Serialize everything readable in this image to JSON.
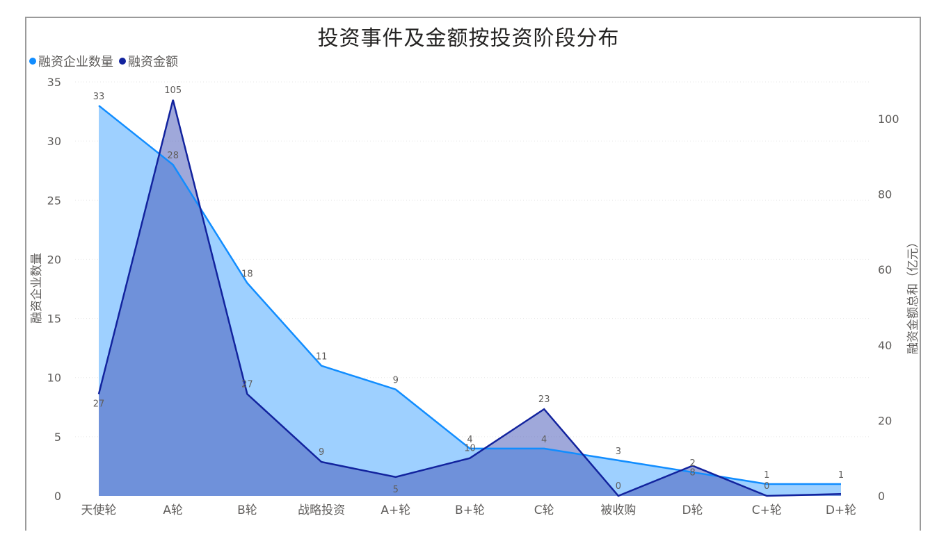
{
  "title": "投资事件及金额按投资阶段分布",
  "legend": [
    {
      "label": "融资企业数量",
      "color": "#118DFF"
    },
    {
      "label": "融资金额",
      "color": "#12239E"
    }
  ],
  "axes": {
    "left_label": "融资企业数量",
    "right_label": "融资金额总和（亿元）",
    "left_ticks": [
      "0",
      "5",
      "10",
      "15",
      "20",
      "25",
      "30",
      "35"
    ],
    "right_ticks": [
      "0",
      "20",
      "40",
      "60",
      "80",
      "100"
    ]
  },
  "chart_data": {
    "type": "area",
    "title": "投资事件及金额按投资阶段分布",
    "categories": [
      "天使轮",
      "A轮",
      "B轮",
      "战略投资",
      "A+轮",
      "B+轮",
      "C轮",
      "被收购",
      "D轮",
      "C+轮",
      "D+轮"
    ],
    "series": [
      {
        "name": "融资企业数量",
        "axis": "left",
        "color": "#118DFF",
        "fill": "#9ED0FF",
        "values": [
          33,
          28,
          18,
          11,
          9,
          4,
          4,
          3,
          2,
          1,
          1
        ]
      },
      {
        "name": "融资金额",
        "axis": "right",
        "color": "#12239E",
        "fill": "#5B6FC9",
        "values": [
          27,
          105,
          27,
          9,
          5,
          10,
          23,
          0,
          8,
          0,
          0.5
        ]
      }
    ],
    "data_labels": {
      "融资企业数量": [
        "33",
        "28",
        "18",
        "11",
        "9",
        "4",
        "4",
        "3",
        "2",
        "1",
        "1"
      ],
      "融资金额": [
        "27",
        "105",
        "27",
        "9",
        "5",
        "10",
        "23",
        "0",
        "8",
        "0",
        ""
      ]
    },
    "xlabel": "",
    "ylabel": "融资企业数量",
    "y2label": "融资金额总和（亿元）",
    "ylim": [
      0,
      35
    ],
    "y2lim": [
      0,
      110
    ],
    "grid": true,
    "legend_position": "top-left"
  }
}
